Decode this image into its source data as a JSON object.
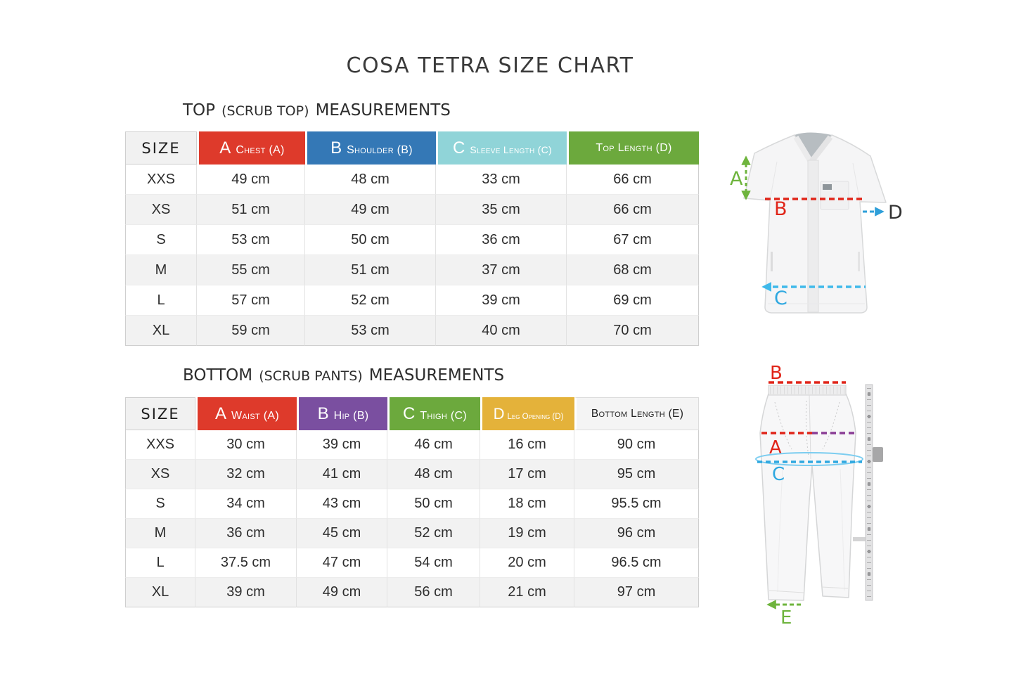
{
  "title": "COSA TETRA SIZE CHART",
  "top_section": {
    "heading": {
      "primary": "TOP",
      "paren": "(SCRUB TOP)",
      "suffix": "MEASUREMENTS"
    },
    "table": {
      "size_header": "SIZE",
      "columns": [
        {
          "letter": "A",
          "label": "Chest (A)",
          "color": "#de3a2b"
        },
        {
          "letter": "B",
          "label": "Shoulder (B)",
          "color": "#3478b6"
        },
        {
          "letter": "C",
          "label": "Sleeve Length (C)",
          "color": "#90d4d8"
        },
        {
          "letter": "",
          "label": "Top Length (D)",
          "color": "#6ca93d"
        }
      ],
      "rows": [
        {
          "size": "XXS",
          "values": [
            "49 cm",
            "48 cm",
            "33 cm",
            "66 cm"
          ]
        },
        {
          "size": "XS",
          "values": [
            "51 cm",
            "49 cm",
            "35 cm",
            "66 cm"
          ]
        },
        {
          "size": "S",
          "values": [
            "53 cm",
            "50 cm",
            "36 cm",
            "67 cm"
          ]
        },
        {
          "size": "M",
          "values": [
            "55 cm",
            "51 cm",
            "37 cm",
            "68 cm"
          ]
        },
        {
          "size": "L",
          "values": [
            "57 cm",
            "52 cm",
            "39 cm",
            "69 cm"
          ]
        },
        {
          "size": "XL",
          "values": [
            "59 cm",
            "53 cm",
            "40 cm",
            "70 cm"
          ]
        }
      ]
    }
  },
  "bottom_section": {
    "heading": {
      "primary": "BOTTOM",
      "paren": "(SCRUB PANTS)",
      "suffix": "MEASUREMENTS"
    },
    "table": {
      "size_header": "SIZE",
      "columns": [
        {
          "letter": "A",
          "label": "Waist (A)",
          "color": "#de3a2b"
        },
        {
          "letter": "B",
          "label": "Hip (B)",
          "color": "#7a4fa0"
        },
        {
          "letter": "C",
          "label": "Thigh (C)",
          "color": "#6ca93d"
        },
        {
          "letter": "D",
          "label": "Leg Opening (D)",
          "color": "#e4b23a"
        },
        {
          "letter": "",
          "label": "Bottom Length (E)",
          "color": "#f4f4f4"
        }
      ],
      "rows": [
        {
          "size": "XXS",
          "values": [
            "30 cm",
            "39 cm",
            "46 cm",
            "16 cm",
            "90 cm"
          ]
        },
        {
          "size": "XS",
          "values": [
            "32 cm",
            "41 cm",
            "48 cm",
            "17 cm",
            "95 cm"
          ]
        },
        {
          "size": "S",
          "values": [
            "34 cm",
            "43 cm",
            "50 cm",
            "18 cm",
            "95.5 cm"
          ]
        },
        {
          "size": "M",
          "values": [
            "36 cm",
            "45 cm",
            "52 cm",
            "19 cm",
            "96 cm"
          ]
        },
        {
          "size": "L",
          "values": [
            "37.5 cm",
            "47 cm",
            "54 cm",
            "20 cm",
            "96.5 cm"
          ]
        },
        {
          "size": "XL",
          "values": [
            "39 cm",
            "49 cm",
            "56 cm",
            "21 cm",
            "97 cm"
          ]
        }
      ]
    }
  },
  "illustrations": {
    "scrub_top": {
      "label_a": "A",
      "label_b": "B",
      "label_c": "C",
      "label_d": "D"
    },
    "scrub_pants": {
      "label_b": "B",
      "label_a": "A",
      "label_c": "C",
      "label_e": "E"
    }
  },
  "palette": {
    "header_red": "#de3a2b",
    "header_blue": "#3478b6",
    "header_teal": "#90d4d8",
    "header_green": "#6ca93d",
    "header_purple": "#7a4fa0",
    "header_gold": "#e4b23a",
    "annotation_red": "#e02519",
    "annotation_green": "#6eb43d",
    "annotation_cyan": "#2fa8e0",
    "annotation_purple": "#8a3d95"
  }
}
